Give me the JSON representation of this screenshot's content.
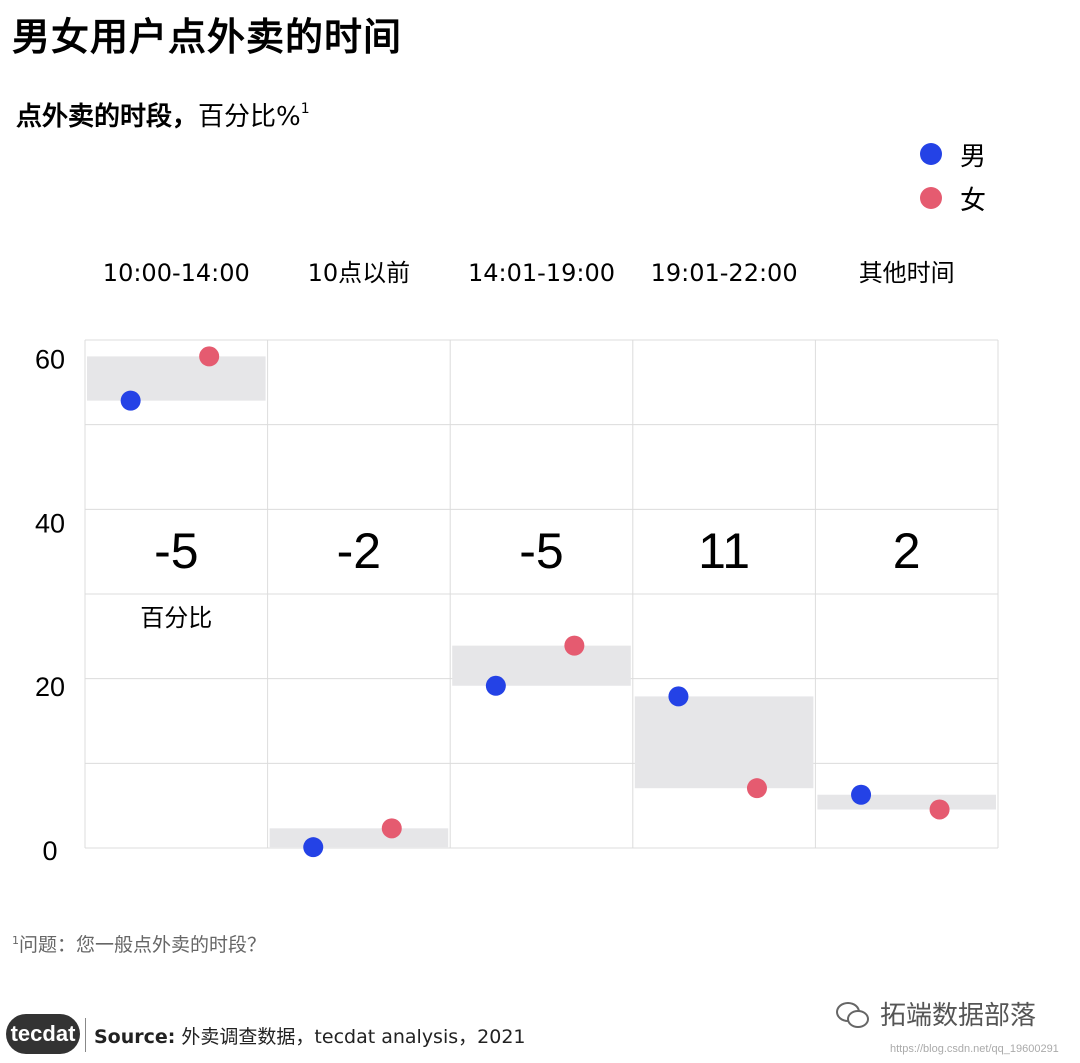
{
  "title": "男女用户点外卖的时间",
  "subtitle": {
    "main": "点外卖的时段，",
    "rest": "百分比%",
    "note_mark": "1"
  },
  "legend": [
    {
      "label": "男",
      "color": "#2442e6"
    },
    {
      "label": "女",
      "color": "#e55b70"
    }
  ],
  "chart_data": {
    "type": "scatter",
    "categories": [
      "10:00-14:00",
      "10点以前",
      "14:01-19:00",
      "19:01-22:00",
      "其他时间"
    ],
    "series": [
      {
        "name": "男",
        "color": "#2442e6",
        "values": [
          54.6,
          0.1,
          19.8,
          18.5,
          6.5
        ]
      },
      {
        "name": "女",
        "color": "#e55b70",
        "values": [
          60.0,
          2.4,
          24.7,
          7.3,
          4.7
        ]
      }
    ],
    "differences": [
      "-5",
      "-2",
      "-5",
      "11",
      "2"
    ],
    "difference_label": "百分比",
    "y_ticks": [
      0,
      20,
      40,
      60
    ],
    "ylim": [
      0,
      62
    ],
    "grid": true,
    "band_color": "#e6e6e8"
  },
  "footnote": {
    "mark": "1",
    "text": "问题：您一般点外卖的时段？"
  },
  "source": {
    "logo": "tecdat",
    "label": "Source:",
    "text": " 外卖调查数据，tecdat analysis，2021"
  },
  "brand": "拓端数据部落",
  "watermark": "https://blog.csdn.net/qq_19600291"
}
